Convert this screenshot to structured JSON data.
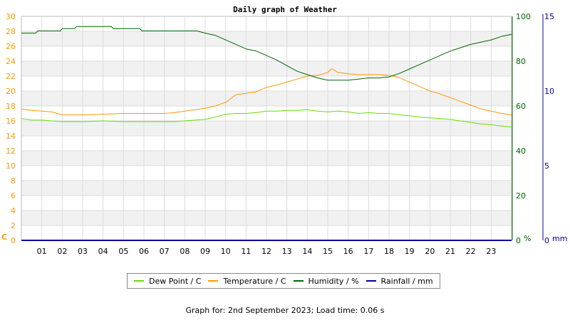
{
  "chart_data": {
    "type": "line",
    "title": "Daily graph of Weather",
    "x_ticks": [
      "01",
      "02",
      "03",
      "04",
      "05",
      "06",
      "07",
      "08",
      "09",
      "10",
      "11",
      "12",
      "13",
      "14",
      "15",
      "16",
      "17",
      "18",
      "19",
      "20",
      "21",
      "22",
      "23"
    ],
    "x_range": [
      0,
      24
    ],
    "axes": {
      "temperature": {
        "unit": "C",
        "range": [
          0,
          30
        ],
        "ticks": [
          "0",
          "2",
          "4",
          "6",
          "8",
          "10",
          "12",
          "14",
          "16",
          "18",
          "20",
          "22",
          "24",
          "26",
          "28",
          "30"
        ],
        "color": "#ff9900"
      },
      "humidity": {
        "unit": "%",
        "range": [
          0,
          100
        ],
        "ticks": [
          "0",
          "20",
          "40",
          "60",
          "80",
          "100"
        ],
        "color": "#006600"
      },
      "rainfall": {
        "unit": "mm",
        "range": [
          0,
          15
        ],
        "ticks": [
          "0",
          "5",
          "10",
          "15"
        ],
        "color": "#000099"
      }
    },
    "series": [
      {
        "name": "Dew Point / C",
        "axis": "temperature",
        "color": "#66dd00",
        "x": [
          0,
          0.5,
          1,
          1.5,
          2,
          3,
          4,
          5,
          6,
          7,
          7.5,
          8,
          8.5,
          9,
          9.5,
          10,
          10.5,
          11,
          11.5,
          12,
          12.5,
          13,
          13.5,
          14,
          14.5,
          15,
          15.5,
          16,
          16.5,
          17,
          17.5,
          18,
          18.5,
          19,
          19.5,
          20,
          20.5,
          21,
          21.5,
          22,
          22.5,
          23,
          23.5,
          24
        ],
        "values": [
          16.3,
          16.1,
          16.1,
          16.0,
          15.9,
          15.9,
          16.0,
          15.9,
          15.9,
          15.9,
          15.9,
          16.0,
          16.1,
          16.2,
          16.5,
          16.9,
          17.0,
          17.0,
          17.1,
          17.3,
          17.3,
          17.4,
          17.4,
          17.5,
          17.3,
          17.2,
          17.3,
          17.2,
          17.0,
          17.1,
          17.0,
          17.0,
          16.8,
          16.7,
          16.5,
          16.4,
          16.3,
          16.2,
          16.0,
          15.8,
          15.6,
          15.5,
          15.3,
          15.2
        ]
      },
      {
        "name": "Temperature / C",
        "axis": "temperature",
        "color": "#ff9900",
        "x": [
          0,
          0.5,
          1,
          1.5,
          2,
          3,
          4,
          5,
          6,
          7,
          7.5,
          8,
          8.5,
          9,
          9.5,
          10,
          10.5,
          11,
          11.5,
          12,
          12.5,
          13,
          13.5,
          14,
          14.5,
          15,
          15.2,
          15.5,
          16,
          16.5,
          17,
          17.5,
          18,
          18.5,
          19,
          19.5,
          20,
          20.5,
          21,
          21.5,
          22,
          22.5,
          23,
          23.5,
          24
        ],
        "values": [
          17.6,
          17.4,
          17.3,
          17.2,
          16.8,
          16.8,
          16.9,
          17.0,
          17.0,
          17.0,
          17.1,
          17.3,
          17.5,
          17.7,
          18.0,
          18.5,
          19.5,
          19.7,
          19.9,
          20.5,
          20.8,
          21.2,
          21.6,
          22.0,
          22.1,
          22.5,
          23.0,
          22.5,
          22.3,
          22.2,
          22.2,
          22.2,
          22.1,
          21.8,
          21.2,
          20.6,
          20.0,
          19.6,
          19.1,
          18.6,
          18.1,
          17.6,
          17.3,
          17.0,
          16.8
        ]
      },
      {
        "name": "Humidity / %",
        "axis": "humidity",
        "color": "#006600",
        "x": [
          0,
          0.7,
          0.8,
          1.9,
          2,
          2.6,
          2.7,
          4.4,
          4.5,
          5.8,
          5.9,
          8.6,
          9,
          9.5,
          10,
          10.5,
          11,
          11.5,
          12,
          12.5,
          13,
          13.5,
          14,
          14.5,
          15,
          15.5,
          16,
          16.5,
          17,
          17.5,
          18,
          18.5,
          19,
          19.5,
          20,
          20.5,
          21,
          21.5,
          22,
          22.5,
          23,
          23.5,
          24
        ],
        "values": [
          92.5,
          92.5,
          93.5,
          93.5,
          94.5,
          94.5,
          95.5,
          95.5,
          94.5,
          94.5,
          93.5,
          93.5,
          92.5,
          91.5,
          89.5,
          87.5,
          85.5,
          84.5,
          82.5,
          80.5,
          78.0,
          75.5,
          74.0,
          72.5,
          71.5,
          71.5,
          71.5,
          72.0,
          72.5,
          72.5,
          73.0,
          74.5,
          76.5,
          78.5,
          80.5,
          82.5,
          84.5,
          86.0,
          87.5,
          88.5,
          89.5,
          91.0,
          92.0
        ]
      },
      {
        "name": "Rainfall / mm",
        "axis": "rainfall",
        "color": "#000099",
        "x": [
          0,
          24
        ],
        "values": [
          0,
          0
        ]
      }
    ],
    "grid": true,
    "legend_position": "bottom"
  },
  "footer": "Graph for: 2nd September 2023; Load time: 0.06 s"
}
